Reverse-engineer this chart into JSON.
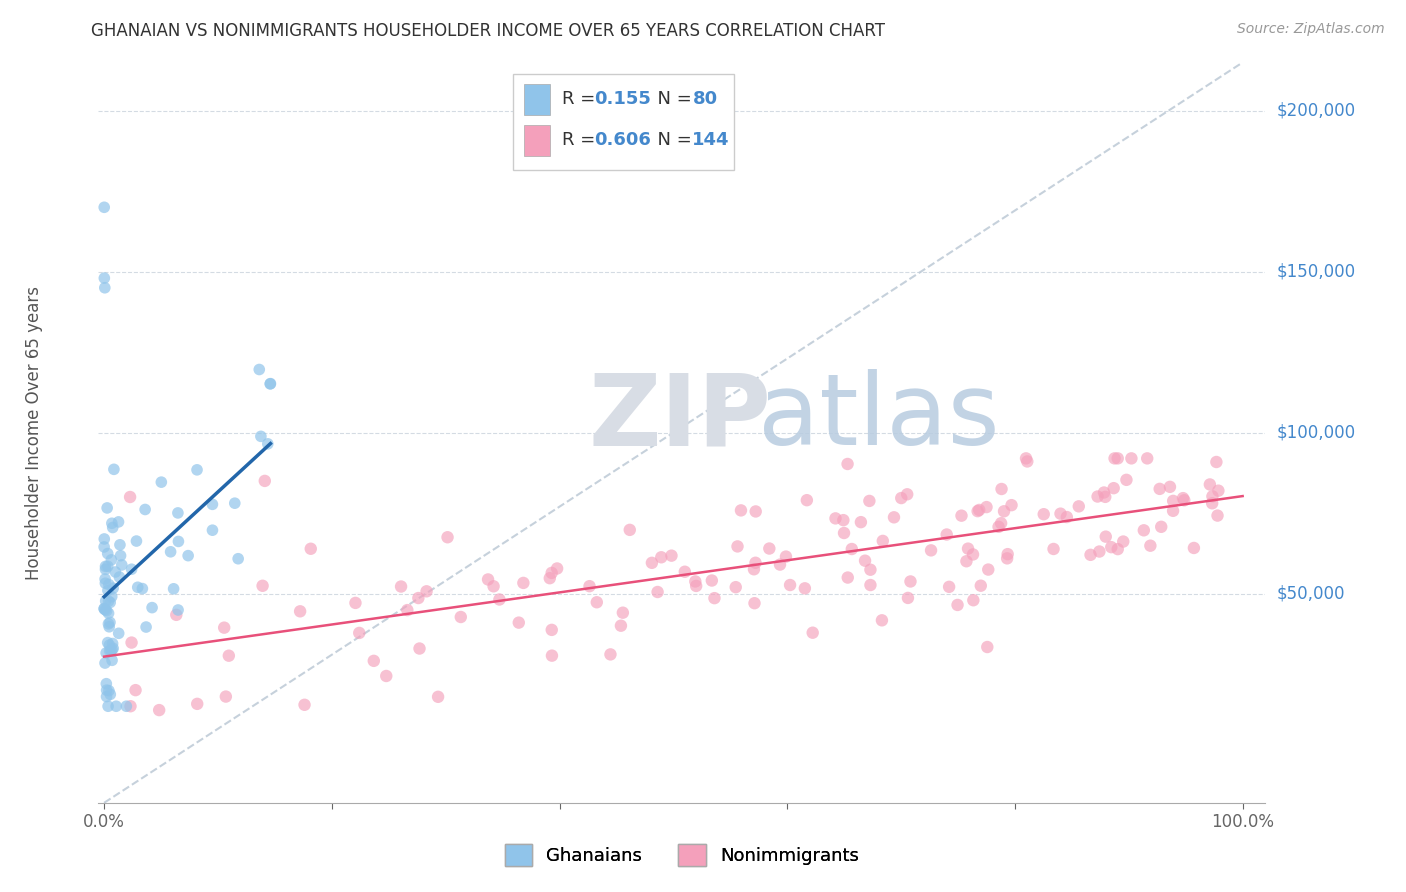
{
  "title": "GHANAIAN VS NONIMMIGRANTS HOUSEHOLDER INCOME OVER 65 YEARS CORRELATION CHART",
  "source": "Source: ZipAtlas.com",
  "ylabel": "Householder Income Over 65 years",
  "ytick_vals": [
    0,
    50000,
    100000,
    150000,
    200000
  ],
  "ytick_labels_right": [
    "$50,000",
    "$100,000",
    "$150,000",
    "$200,000"
  ],
  "ytick_vals_right": [
    50000,
    100000,
    150000,
    200000
  ],
  "ymin": -15000,
  "ymax": 215000,
  "xmin": -0.005,
  "xmax": 1.02,
  "watermark_zip": "ZIP",
  "watermark_atlas": "atlas",
  "legend_R1": "0.155",
  "legend_N1": "80",
  "legend_R2": "0.606",
  "legend_N2": "144",
  "legend_label1": "Ghanaians",
  "legend_label2": "Nonimmigrants",
  "ghanaian_color": "#90c4ea",
  "nonimmigrant_color": "#f4a0bb",
  "ghanaian_line_color": "#2266aa",
  "nonimmigrant_line_color": "#e8507a",
  "diagonal_color": "#c0ccd8",
  "title_color": "#333333",
  "source_color": "#999999",
  "ylabel_color": "#555555",
  "ytick_color": "#4488cc",
  "xtick_color": "#666666",
  "legend_R_color": "#4488cc",
  "background_color": "#ffffff",
  "grid_color": "#d0d8e0",
  "watermark_zip_color": "#d8dde5",
  "watermark_atlas_color": "#b8cce0"
}
